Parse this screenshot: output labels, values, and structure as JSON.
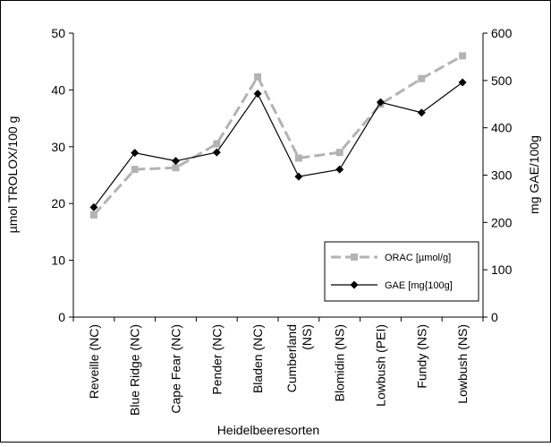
{
  "chart_data": {
    "type": "line",
    "title": "",
    "xlabel": "Heidelbeeresorten",
    "ylabel_left": "µmol TROLOX/100 g",
    "ylabel_right": "mg GAE/100g",
    "ylim_left": [
      0,
      50
    ],
    "ylim_right": [
      0,
      600
    ],
    "yticks_left": [
      "0",
      "10",
      "20",
      "30",
      "40",
      "50"
    ],
    "yticks_right": [
      "0",
      "100",
      "200",
      "300",
      "400",
      "500",
      "600"
    ],
    "grid": false,
    "legend_position": "bottom-right",
    "categories": [
      [
        "Reveille (NC)"
      ],
      [
        "Blue Ridge (NC)"
      ],
      [
        "Cape Fear (NC)"
      ],
      [
        "Pender (NC)"
      ],
      [
        "Bladen (NC)"
      ],
      [
        "Cumberland",
        "(NS)"
      ],
      [
        "Blomidin (NS)"
      ],
      [
        "Lowbush (PEI)"
      ],
      [
        "Fundy (NS)"
      ],
      [
        "Lowbush (NS)"
      ]
    ],
    "series": [
      {
        "name": "ORAC [µmol/g]",
        "axis": "left",
        "color": "#b3b3b3",
        "style": "dashed",
        "marker": "square",
        "values": [
          18,
          26,
          26.3,
          30.5,
          42.3,
          28,
          29,
          37.5,
          42,
          46
        ]
      },
      {
        "name": "GAE [mg{100g]",
        "axis": "right",
        "color": "#000000",
        "style": "solid",
        "marker": "diamond",
        "values": [
          232,
          347,
          330,
          348,
          472,
          297,
          312,
          454,
          432,
          496
        ]
      }
    ]
  }
}
